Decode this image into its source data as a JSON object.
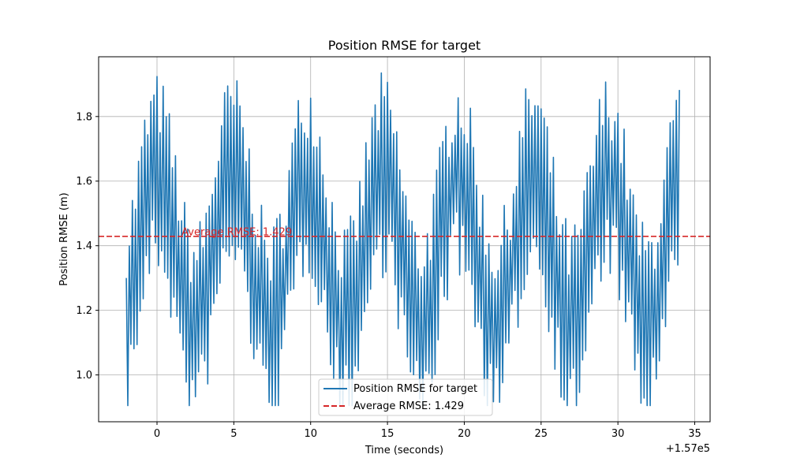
{
  "chart_data": {
    "type": "line",
    "title": "Position RMSE for target",
    "xlabel": "Time (seconds)",
    "ylabel": "Position RMSE (m)",
    "x_offset_label": "+1.57e5",
    "xlim": [
      -3.8,
      36
    ],
    "ylim": [
      0.855,
      1.985
    ],
    "x_ticks": [
      0,
      5,
      10,
      15,
      20,
      25,
      30,
      35
    ],
    "x_tick_labels": [
      "0",
      "5",
      "10",
      "15",
      "20",
      "25",
      "30",
      "35"
    ],
    "y_ticks": [
      1.0,
      1.2,
      1.4,
      1.6,
      1.8
    ],
    "y_tick_labels": [
      "1.0",
      "1.2",
      "1.4",
      "1.6",
      "1.8"
    ],
    "grid": true,
    "legend_position": "lower-center",
    "series": [
      {
        "name": "Position RMSE for target",
        "color": "#1f77b4",
        "style": "solid",
        "x_start": -2.0,
        "x_end": 34.0,
        "period": 4.9,
        "phase_peak": 0.0,
        "base_min": 1.15,
        "base_max": 1.62,
        "noise_amp": 0.32,
        "sample_step": 0.1
      },
      {
        "name": "Average RMSE: 1.429",
        "color": "#d62728",
        "style": "dashed",
        "y": 1.429
      }
    ],
    "annotations": [
      {
        "text": "Average RMSE: 1.429",
        "x": 1.6,
        "y": 1.432,
        "color": "#d62728"
      }
    ]
  }
}
